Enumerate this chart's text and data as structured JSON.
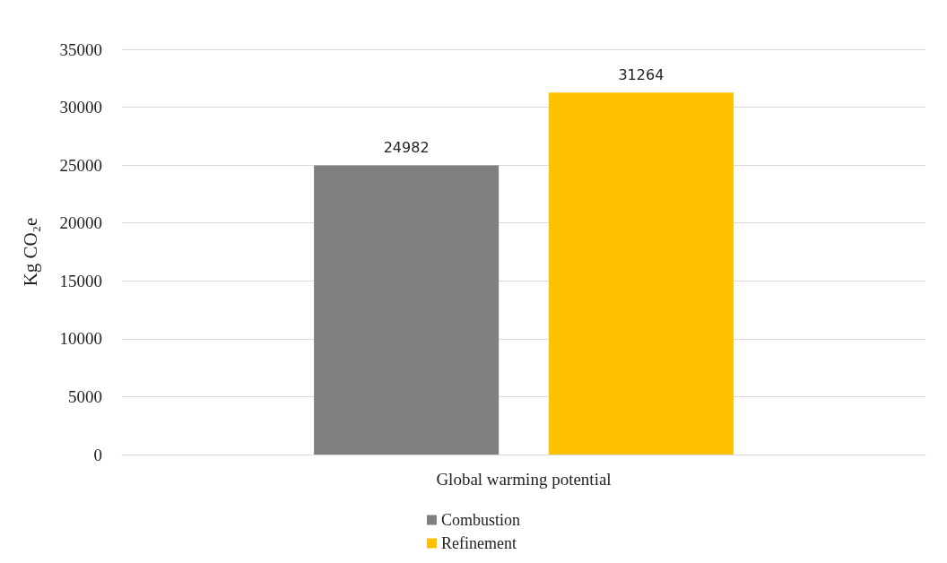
{
  "chart_data": {
    "type": "bar",
    "ylabel": "Kg CO₂e",
    "categories": [
      "Global warming potential"
    ],
    "series": [
      {
        "name": "Combustion",
        "color": "#7f7f7f",
        "values": [
          24982
        ]
      },
      {
        "name": "Refinement",
        "color": "#ffc000",
        "values": [
          31264
        ]
      }
    ],
    "ylim": [
      0,
      35000
    ],
    "yticks": [
      0,
      5000,
      10000,
      15000,
      20000,
      25000,
      30000,
      35000
    ],
    "grid": "y",
    "legend": "bottom",
    "data_labels": true
  }
}
